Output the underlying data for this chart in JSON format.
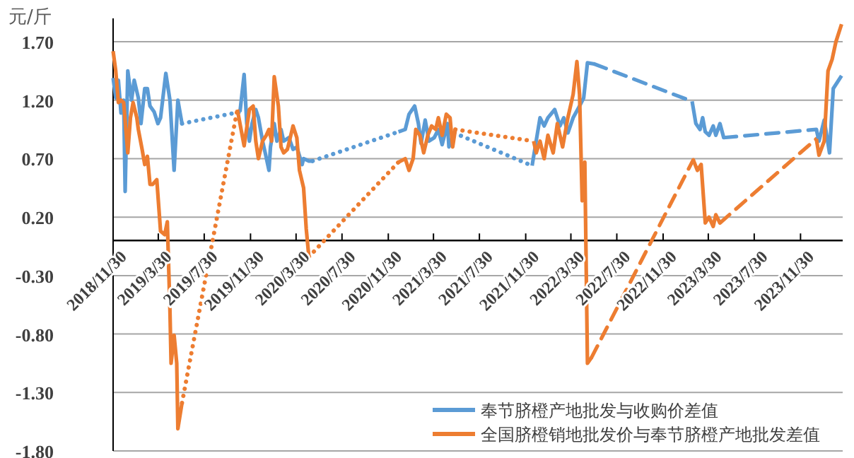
{
  "chart_data": {
    "type": "line",
    "ylabel": "元/斤",
    "xlim": [
      "2018-11-30",
      "2024-03-21"
    ],
    "xticks": [
      {
        "value": "2018-11-30",
        "label": "2018/11/30"
      },
      {
        "value": "2019-03-30",
        "label": "2019/3/30"
      },
      {
        "value": "2019-07-30",
        "label": "2019/7/30"
      },
      {
        "value": "2019-11-30",
        "label": "2019/11/30"
      },
      {
        "value": "2020-03-30",
        "label": "2020/3/30"
      },
      {
        "value": "2020-07-30",
        "label": "2020/7/30"
      },
      {
        "value": "2020-11-30",
        "label": "2020/11/30"
      },
      {
        "value": "2021-03-30",
        "label": "2021/3/30"
      },
      {
        "value": "2021-07-30",
        "label": "2021/7/30"
      },
      {
        "value": "2021-11-30",
        "label": "2021/11/30"
      },
      {
        "value": "2022-03-30",
        "label": "2022/3/30"
      },
      {
        "value": "2022-07-30",
        "label": "2022/7/30"
      },
      {
        "value": "2022-11-30",
        "label": "2022/11/30"
      },
      {
        "value": "2023-03-30",
        "label": "2023/3/30"
      },
      {
        "value": "2023-07-30",
        "label": "2023/7/30"
      },
      {
        "value": "2023-11-30",
        "label": "2023/11/30"
      }
    ],
    "ylim": [
      -1.8,
      1.9
    ],
    "yticks": [
      {
        "value": 1.7,
        "label": "1.70"
      },
      {
        "value": 1.2,
        "label": "1.20"
      },
      {
        "value": 0.7,
        "label": "0.70"
      },
      {
        "value": 0.2,
        "label": "0.20"
      },
      {
        "value": -0.3,
        "label": "-0.30"
      },
      {
        "value": -0.8,
        "label": "-0.80"
      },
      {
        "value": -1.3,
        "label": "-1.30"
      },
      {
        "value": -1.8,
        "label": "-1.80"
      }
    ],
    "grid": "y",
    "legend": "bottom right",
    "marker": "none",
    "series": [
      {
        "color": "#5b9bd5",
        "line_style": "dotted",
        "x": [
          "2019-06-01",
          "2019-11-02"
        ],
        "values": [
          1.0,
          1.1
        ]
      },
      {
        "color": "#5b9bd5",
        "line_style": "dotted",
        "x": [
          "2020-05-13",
          "2020-12-27"
        ],
        "values": [
          0.68,
          0.93
        ]
      },
      {
        "color": "#5b9bd5",
        "line_style": "dotted",
        "x": [
          "2021-05-24",
          "2021-12-17"
        ],
        "values": [
          0.92,
          0.64
        ]
      },
      {
        "color": "#5b9bd5",
        "line_style": "dashed",
        "x": [
          "2022-05-31",
          "2023-02-15"
        ],
        "values": [
          1.51,
          1.19
        ]
      },
      {
        "color": "#5b9bd5",
        "line_style": "dashed",
        "x": [
          "2023-05-10",
          "2024-01-11"
        ],
        "values": [
          0.88,
          0.95
        ]
      },
      {
        "color": "#ed7d31",
        "line_style": "dotted",
        "x": [
          "2019-06-01",
          "2019-10-26"
        ],
        "values": [
          -1.39,
          1.12
        ]
      },
      {
        "color": "#ed7d31",
        "line_style": "dotted",
        "x": [
          "2020-05-03",
          "2020-12-27"
        ],
        "values": [
          -0.14,
          0.67
        ]
      },
      {
        "color": "#ed7d31",
        "line_style": "dotted",
        "x": [
          "2021-05-27",
          "2021-12-21"
        ],
        "values": [
          0.95,
          0.85
        ]
      },
      {
        "color": "#ed7d31",
        "line_style": "dashed",
        "x": [
          "2022-05-24",
          "2023-02-18"
        ],
        "values": [
          -1.0,
          0.69
        ]
      },
      {
        "color": "#ed7d31",
        "line_style": "dashed",
        "x": [
          "2023-04-30",
          "2024-01-11"
        ],
        "values": [
          0.15,
          0.87
        ]
      },
      {
        "name": "奉节脐橙产地批发与收购价差值",
        "color": "#5b9bd5",
        "line_style": "solid",
        "x": [
          "2018-11-30",
          "2018-12-07",
          "2018-12-14",
          "2018-12-21",
          "2018-12-28",
          "2019-01-01",
          "2019-01-08",
          "2019-01-18",
          "2019-01-25",
          "2019-02-05",
          "2019-02-12",
          "2019-02-22",
          "2019-03-01",
          "2019-03-08",
          "2019-03-19",
          "2019-03-29",
          "2019-04-05",
          "2019-04-19",
          "2019-04-30",
          "2019-05-11",
          "2019-05-21",
          "2019-06-01"
        ],
        "values": [
          1.39,
          1.22,
          1.37,
          1.09,
          1.2,
          0.42,
          1.45,
          1.2,
          1.37,
          1.22,
          1.0,
          1.3,
          1.3,
          1.15,
          1.1,
          1.0,
          1.05,
          1.43,
          1.2,
          0.6,
          1.2,
          1.0
        ]
      },
      {
        "color": "#5b9bd5",
        "line_style": "solid",
        "x": [
          "2019-11-02",
          "2019-11-13",
          "2019-11-20",
          "2019-11-27",
          "2019-12-04",
          "2019-12-14",
          "2019-12-21",
          "2020-01-01",
          "2020-01-08",
          "2020-01-18",
          "2020-01-22",
          "2020-02-01",
          "2020-02-08",
          "2020-02-19",
          "2020-02-26",
          "2020-03-11",
          "2020-03-22",
          "2020-04-01",
          "2020-04-15",
          "2020-04-19",
          "2020-05-03",
          "2020-05-13"
        ],
        "values": [
          1.1,
          1.42,
          1.0,
          0.85,
          1.0,
          1.12,
          1.05,
          0.85,
          0.75,
          0.6,
          0.8,
          1.0,
          0.85,
          0.95,
          0.85,
          0.88,
          0.78,
          0.8,
          0.65,
          0.7,
          0.68,
          0.68
        ]
      },
      {
        "color": "#5b9bd5",
        "line_style": "solid",
        "x": [
          "2020-12-27",
          "2021-01-14",
          "2021-01-24",
          "2021-02-08",
          "2021-02-18",
          "2021-02-25",
          "2021-03-08",
          "2021-03-18",
          "2021-04-01",
          "2021-04-12",
          "2021-04-22",
          "2021-05-06",
          "2021-05-10",
          "2021-05-24"
        ],
        "values": [
          0.93,
          0.95,
          1.08,
          1.15,
          1.0,
          0.83,
          1.03,
          0.85,
          0.88,
          0.95,
          0.82,
          1.0,
          0.8,
          0.92
        ]
      },
      {
        "color": "#5b9bd5",
        "line_style": "solid",
        "x": [
          "2021-12-17",
          "2022-01-07",
          "2022-01-18",
          "2022-01-28",
          "2022-02-15",
          "2022-03-01",
          "2022-03-11",
          "2022-03-22",
          "2022-04-05",
          "2022-04-22",
          "2022-05-03",
          "2022-05-13",
          "2022-05-31"
        ],
        "values": [
          0.64,
          1.05,
          0.98,
          1.05,
          1.12,
          0.98,
          1.05,
          0.92,
          1.05,
          1.15,
          1.22,
          1.52,
          1.51
        ]
      },
      {
        "color": "#5b9bd5",
        "line_style": "solid",
        "x": [
          "2023-02-15",
          "2023-02-25",
          "2023-03-08",
          "2023-03-15",
          "2023-03-22",
          "2023-04-01",
          "2023-04-12",
          "2023-04-19",
          "2023-04-30",
          "2023-05-10"
        ],
        "values": [
          1.19,
          1.0,
          0.95,
          1.05,
          0.93,
          0.9,
          0.98,
          0.9,
          1.0,
          0.88
        ]
      },
      {
        "color": "#5b9bd5",
        "line_style": "solid",
        "x": [
          "2024-01-11",
          "2024-01-18",
          "2024-02-01",
          "2024-02-15",
          "2024-02-25",
          "2024-03-18"
        ],
        "values": [
          0.95,
          0.85,
          1.03,
          0.75,
          1.3,
          1.41
        ]
      },
      {
        "name": "全国脐橙销地批发价与奉节脐橙产地批发差值",
        "color": "#ed7d31",
        "line_style": "solid",
        "x": [
          "2018-11-30",
          "2018-12-07",
          "2018-12-14",
          "2018-12-21",
          "2018-12-28",
          "2019-01-08",
          "2019-01-15",
          "2019-01-22",
          "2019-02-01",
          "2019-02-05",
          "2019-02-15",
          "2019-02-22",
          "2019-03-01",
          "2019-03-08",
          "2019-03-15",
          "2019-03-26",
          "2019-04-05",
          "2019-04-16",
          "2019-04-23",
          "2019-04-30",
          "2019-05-03",
          "2019-05-11",
          "2019-05-18",
          "2019-05-21",
          "2019-06-01"
        ],
        "values": [
          1.62,
          1.45,
          1.18,
          1.2,
          1.18,
          0.75,
          1.05,
          1.18,
          1.05,
          0.95,
          0.78,
          0.65,
          0.72,
          0.48,
          0.48,
          0.52,
          0.08,
          0.05,
          0.16,
          -0.6,
          -1.05,
          -0.81,
          -1.05,
          -1.61,
          -1.39
        ]
      },
      {
        "color": "#ed7d31",
        "line_style": "solid",
        "x": [
          "2019-10-26",
          "2019-11-13",
          "2019-11-27",
          "2019-12-07",
          "2019-12-14",
          "2019-12-21",
          "2020-01-01",
          "2020-01-11",
          "2020-01-18",
          "2020-01-25",
          "2020-02-01",
          "2020-02-12",
          "2020-02-19",
          "2020-02-26",
          "2020-03-07",
          "2020-03-22",
          "2020-04-01",
          "2020-04-08",
          "2020-04-19",
          "2020-04-26",
          "2020-05-03"
        ],
        "values": [
          1.12,
          0.81,
          1.12,
          1.15,
          0.85,
          0.7,
          0.85,
          0.9,
          0.95,
          0.85,
          1.4,
          1.15,
          0.8,
          0.75,
          0.78,
          0.98,
          0.88,
          0.6,
          0.45,
          0.1,
          -0.14
        ]
      },
      {
        "color": "#ed7d31",
        "line_style": "solid",
        "x": [
          "2020-12-27",
          "2021-01-14",
          "2021-01-24",
          "2021-02-04",
          "2021-02-11",
          "2021-02-22",
          "2021-03-04",
          "2021-03-15",
          "2021-03-25",
          "2021-04-05",
          "2021-04-12",
          "2021-04-22",
          "2021-05-03",
          "2021-05-13",
          "2021-05-20",
          "2021-05-27"
        ],
        "values": [
          0.67,
          0.7,
          0.6,
          0.7,
          0.95,
          0.9,
          0.75,
          0.9,
          0.98,
          0.95,
          1.05,
          0.9,
          1.08,
          1.05,
          0.8,
          0.95
        ]
      },
      {
        "color": "#ed7d31",
        "line_style": "solid",
        "x": [
          "2021-12-21",
          "2021-12-28",
          "2022-01-07",
          "2022-01-18",
          "2022-01-28",
          "2022-02-11",
          "2022-02-22",
          "2022-03-08",
          "2022-03-22",
          "2022-04-05",
          "2022-04-15",
          "2022-04-22",
          "2022-04-29",
          "2022-05-06",
          "2022-05-13",
          "2022-05-24"
        ],
        "values": [
          0.85,
          0.75,
          0.85,
          0.7,
          0.9,
          0.75,
          1.0,
          0.8,
          1.05,
          1.25,
          1.53,
          1.25,
          0.34,
          0.67,
          -1.05,
          -1.0
        ]
      },
      {
        "color": "#ed7d31",
        "line_style": "solid",
        "x": [
          "2023-02-18",
          "2023-03-01",
          "2023-03-11",
          "2023-03-22",
          "2023-04-01",
          "2023-04-12",
          "2023-04-19",
          "2023-04-30"
        ],
        "values": [
          0.69,
          0.6,
          0.65,
          0.15,
          0.2,
          0.12,
          0.22,
          0.15
        ]
      },
      {
        "color": "#ed7d31",
        "line_style": "solid",
        "x": [
          "2024-01-11",
          "2024-01-18",
          "2024-02-01",
          "2024-02-11",
          "2024-02-22",
          "2024-03-03",
          "2024-03-18"
        ],
        "values": [
          0.87,
          0.73,
          0.85,
          1.45,
          1.55,
          1.7,
          1.85
        ]
      }
    ]
  }
}
